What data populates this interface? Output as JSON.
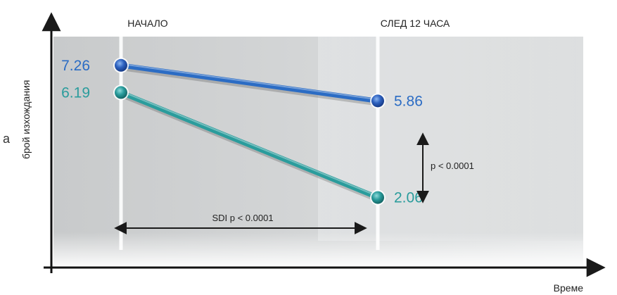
{
  "chart_data": {
    "type": "line",
    "categories": [
      "НАЧАЛО",
      "СЛЕД 12 ЧАСА"
    ],
    "series": [
      {
        "name": "",
        "values": [
          7.26,
          5.86
        ],
        "color": "#2b6cc4"
      },
      {
        "name": "",
        "values": [
          6.19,
          2.06
        ],
        "color": "#2a9c9c"
      }
    ],
    "title": "",
    "xlabel": "Време",
    "ylabel": "брой изхождания",
    "ylim": [
      0,
      8.5
    ],
    "grid": false,
    "annotations": {
      "horizontal": "SDI p < 0.0001",
      "vertical": "p < 0.0001"
    },
    "side_fragment": "а"
  }
}
